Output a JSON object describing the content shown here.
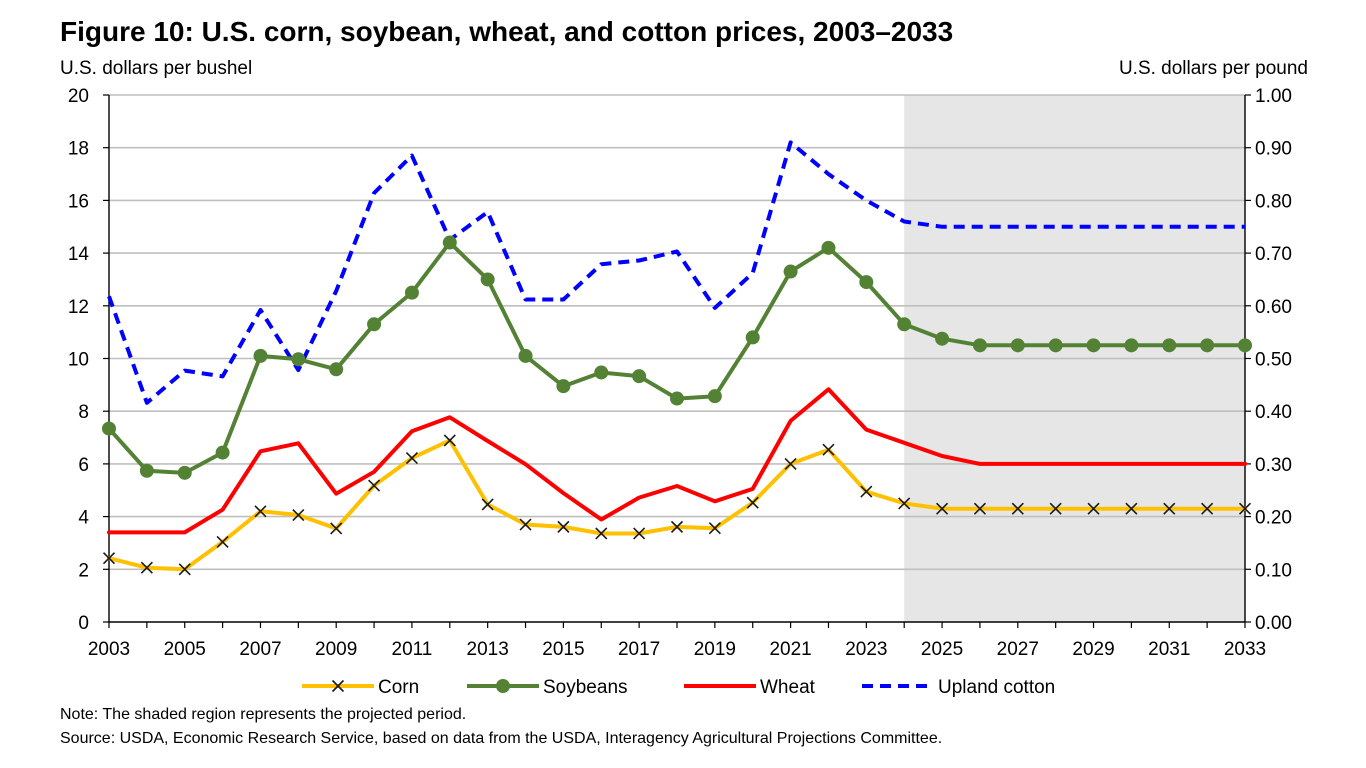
{
  "figure": {
    "title": "Figure 10: U.S. corn, soybean, wheat, and cotton prices, 2003–2033",
    "note": "Note: The shaded region represents the projected period.",
    "source": "Source: USDA, Economic Research Service, based on data from the USDA, Interagency Agricultural Projections Committee."
  },
  "chart_data": {
    "type": "line",
    "title": "Figure 10: U.S. corn, soybean, wheat, and cotton prices, 2003–2033",
    "ylabel": "U.S. dollars per bushel",
    "y2label": "U.S. dollars per pound",
    "x": [
      2003,
      2004,
      2005,
      2006,
      2007,
      2008,
      2009,
      2010,
      2011,
      2012,
      2013,
      2014,
      2015,
      2016,
      2017,
      2018,
      2019,
      2020,
      2021,
      2022,
      2023,
      2024,
      2025,
      2026,
      2027,
      2028,
      2029,
      2030,
      2031,
      2032,
      2033
    ],
    "xticks": [
      "2003",
      "2005",
      "2007",
      "2009",
      "2011",
      "2013",
      "2015",
      "2017",
      "2019",
      "2021",
      "2023",
      "2025",
      "2027",
      "2029",
      "2031",
      "2033"
    ],
    "ylim": [
      0,
      20
    ],
    "yticks": [
      "0",
      "2",
      "4",
      "6",
      "8",
      "10",
      "12",
      "14",
      "16",
      "18",
      "20"
    ],
    "y2lim": [
      0,
      1.0
    ],
    "y2ticks": [
      "0.00",
      "0.10",
      "0.20",
      "0.30",
      "0.40",
      "0.50",
      "0.60",
      "0.70",
      "0.80",
      "0.90",
      "1.00"
    ],
    "grid": true,
    "legend_position": "bottom",
    "shaded_region": {
      "from": 2024,
      "to": 2033,
      "color": "#e6e6e6"
    },
    "series": [
      {
        "name": "Corn",
        "axis": "left",
        "color": "#ffc000",
        "marker": "x",
        "dash": false,
        "values": [
          2.42,
          2.06,
          2.0,
          3.04,
          4.2,
          4.06,
          3.55,
          5.18,
          6.22,
          6.89,
          4.46,
          3.7,
          3.61,
          3.36,
          3.36,
          3.61,
          3.56,
          4.53,
          6.0,
          6.54,
          4.95,
          4.5,
          4.3,
          4.3,
          4.3,
          4.3,
          4.3,
          4.3,
          4.3,
          4.3,
          4.3
        ]
      },
      {
        "name": "Soybeans",
        "axis": "left",
        "color": "#548235",
        "marker": "circle",
        "dash": false,
        "values": [
          7.34,
          5.74,
          5.66,
          6.43,
          10.1,
          9.97,
          9.59,
          11.3,
          12.5,
          14.4,
          13.0,
          10.1,
          8.95,
          9.47,
          9.33,
          8.48,
          8.57,
          10.8,
          13.3,
          14.2,
          12.9,
          11.3,
          10.75,
          10.5,
          10.5,
          10.5,
          10.5,
          10.5,
          10.5,
          10.5,
          10.5
        ]
      },
      {
        "name": "Wheat",
        "axis": "left",
        "color": "#ff0000",
        "marker": "none",
        "dash": false,
        "values": [
          3.4,
          3.4,
          3.4,
          4.26,
          6.48,
          6.78,
          4.87,
          5.7,
          7.24,
          7.77,
          6.87,
          5.99,
          4.89,
          3.89,
          4.72,
          5.16,
          4.58,
          5.05,
          7.63,
          8.83,
          7.3,
          6.8,
          6.3,
          6.0,
          6.0,
          6.0,
          6.0,
          6.0,
          6.0,
          6.0,
          6.0
        ]
      },
      {
        "name": "Upland cotton",
        "axis": "right",
        "color": "#0000ff",
        "marker": "none",
        "dash": true,
        "values": [
          0.618,
          0.416,
          0.477,
          0.466,
          0.592,
          0.478,
          0.628,
          0.814,
          0.885,
          0.725,
          0.778,
          0.612,
          0.612,
          0.679,
          0.686,
          0.703,
          0.596,
          0.662,
          0.91,
          0.85,
          0.8,
          0.76,
          0.75,
          0.75,
          0.75,
          0.75,
          0.75,
          0.75,
          0.75,
          0.75,
          0.75
        ]
      }
    ]
  }
}
